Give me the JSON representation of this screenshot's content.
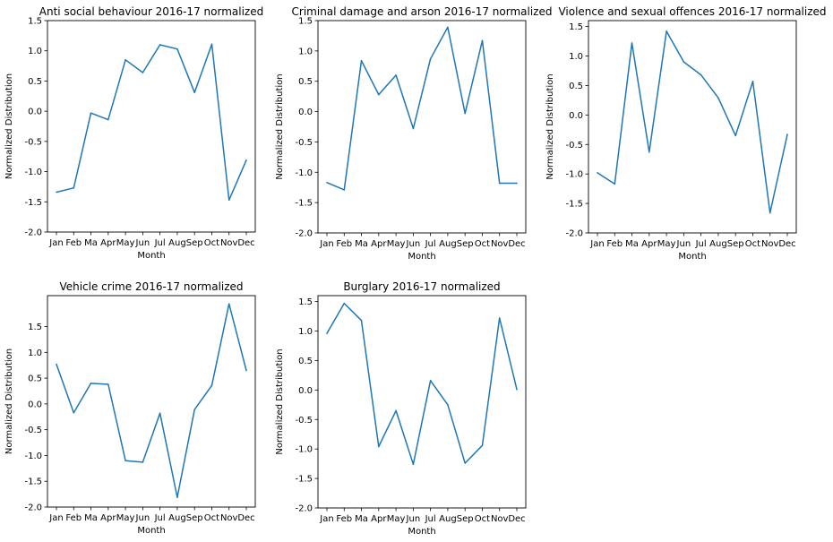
{
  "chart_data": [
    {
      "type": "line",
      "title": "Anti social behaviour 2016-17 normalized",
      "xlabel": "Month",
      "ylabel": "Normalized Distribution",
      "categories": [
        "Jan",
        "Feb",
        "Ma",
        "Apr",
        "May",
        "Jun",
        "Jul",
        "Aug",
        "Sep",
        "Oct",
        "Nov",
        "Dec"
      ],
      "values": [
        -1.34,
        -1.27,
        -0.03,
        -0.14,
        0.85,
        0.64,
        1.1,
        1.03,
        0.31,
        1.11,
        -1.47,
        -0.81
      ],
      "ylim": [
        -2.0,
        1.5
      ],
      "yticks": [
        "-2.0",
        "-1.5",
        "-1.0",
        "-0.5",
        "0.0",
        "0.5",
        "1.0",
        "1.5"
      ],
      "color": "#1f77b4"
    },
    {
      "type": "line",
      "title": "Criminal damage and arson 2016-17 normalized",
      "xlabel": "Month",
      "ylabel": "Normalized Distribution",
      "categories": [
        "Jan",
        "Feb",
        "Ma",
        "Apr",
        "May",
        "Jun",
        "Jul",
        "Aug",
        "Sep",
        "Oct",
        "Nov",
        "Dec"
      ],
      "values": [
        -1.17,
        -1.29,
        0.84,
        0.28,
        0.6,
        -0.28,
        0.87,
        1.39,
        -0.03,
        1.17,
        -1.18,
        -1.18
      ],
      "ylim": [
        -2.0,
        1.5
      ],
      "yticks": [
        "-2.0",
        "-1.5",
        "-1.0",
        "-0.5",
        "0.0",
        "0.5",
        "1.0",
        "1.5"
      ],
      "color": "#1f77b4"
    },
    {
      "type": "line",
      "title": "Violence and sexual offences 2016-17 normalized",
      "xlabel": "Month",
      "ylabel": "Normalized Distribution",
      "categories": [
        "Jan",
        "Feb",
        "Ma",
        "Apr",
        "May",
        "Jun",
        "Jul",
        "Aug",
        "Sep",
        "Oct",
        "Nov",
        "Dec"
      ],
      "values": [
        -0.98,
        -1.17,
        1.22,
        -0.63,
        1.42,
        0.9,
        0.68,
        0.29,
        -0.35,
        0.57,
        -1.66,
        -0.33
      ],
      "ylim": [
        -2.0,
        1.6
      ],
      "yticks": [
        "-2.0",
        "-1.5",
        "-1.0",
        "-0.5",
        "0.0",
        "0.5",
        "1.0",
        "1.5"
      ],
      "color": "#1f77b4"
    },
    {
      "type": "line",
      "title": "Vehicle crime 2016-17 normalized",
      "xlabel": "Month",
      "ylabel": "Normalized Distribution",
      "categories": [
        "Jan",
        "Feb",
        "Ma",
        "Apr",
        "May",
        "Jun",
        "Jul",
        "Aug",
        "Sep",
        "Oct",
        "Nov",
        "Dec"
      ],
      "values": [
        0.77,
        -0.17,
        0.4,
        0.38,
        -1.1,
        -1.13,
        -0.18,
        -1.81,
        -0.11,
        0.36,
        1.94,
        0.65
      ],
      "ylim": [
        -2.0,
        2.1
      ],
      "yticks": [
        "-2.0",
        "-1.5",
        "-1.0",
        "-0.5",
        "0.0",
        "0.5",
        "1.0",
        "1.5"
      ],
      "color": "#1f77b4"
    },
    {
      "type": "line",
      "title": "Burglary 2016-17 normalized",
      "xlabel": "Month",
      "ylabel": "Normalized Distribution",
      "categories": [
        "Jan",
        "Feb",
        "Ma",
        "Apr",
        "May",
        "Jun",
        "Jul",
        "Aug",
        "Sep",
        "Oct",
        "Nov",
        "Dec"
      ],
      "values": [
        0.96,
        1.47,
        1.18,
        -0.96,
        -0.35,
        -1.26,
        0.16,
        -0.25,
        -1.24,
        -0.94,
        1.22,
        0.01
      ],
      "ylim": [
        -2.0,
        1.6
      ],
      "yticks": [
        "-2.0",
        "-1.5",
        "-1.0",
        "-0.5",
        "0.0",
        "0.5",
        "1.0",
        "1.5"
      ],
      "color": "#1f77b4"
    }
  ]
}
